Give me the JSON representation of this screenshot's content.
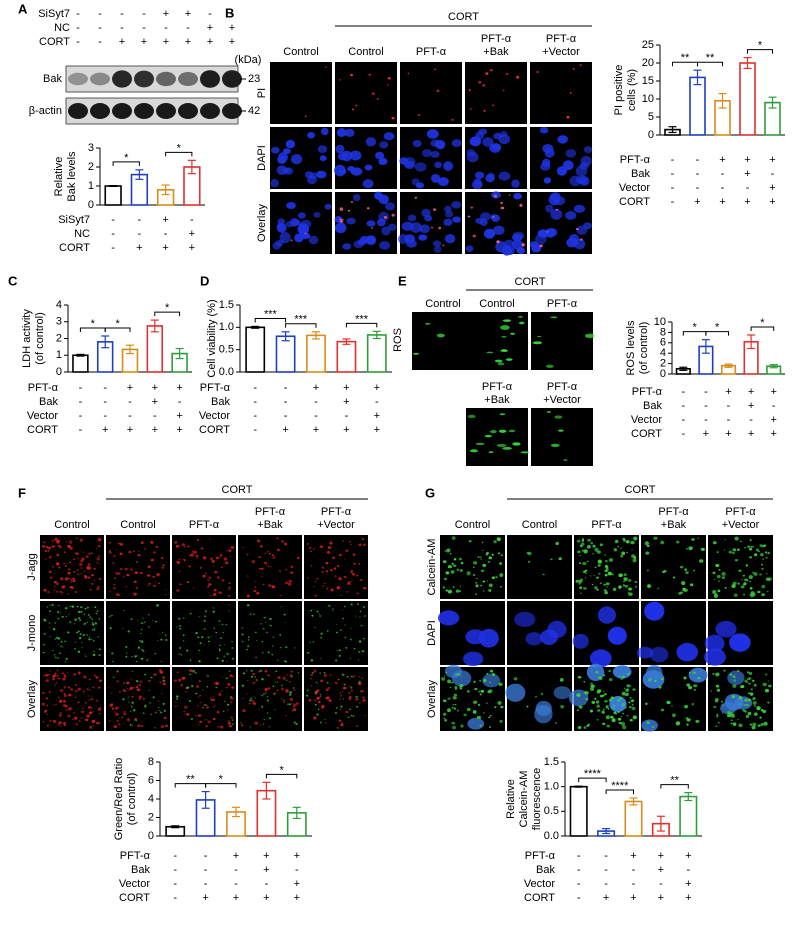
{
  "panel_labels": [
    "A",
    "B",
    "C",
    "D",
    "E",
    "F",
    "G"
  ],
  "blot": {
    "rows": [
      {
        "name": "SiSyt7",
        "signs": [
          "-",
          "-",
          "-",
          "-",
          "+",
          "+",
          "-",
          "-"
        ]
      },
      {
        "name": "NC",
        "signs": [
          "-",
          "-",
          "-",
          "-",
          "-",
          "-",
          "+",
          "+"
        ]
      },
      {
        "name": "CORT",
        "signs": [
          "-",
          "-",
          "+",
          "+",
          "+",
          "+",
          "+",
          "+"
        ]
      }
    ],
    "unit": "(kDa)",
    "bands": [
      {
        "name": "Bak",
        "marker": "23"
      },
      {
        "name": "β-actin",
        "marker": "42"
      }
    ]
  },
  "images": {
    "B": {
      "title": "CORT",
      "columns": [
        [
          "Control"
        ],
        [
          "Control"
        ],
        [
          "PFT-α"
        ],
        [
          "PFT-α",
          "+Bak"
        ],
        [
          "PFT-α",
          "+Vector"
        ]
      ],
      "rows": [
        "PI",
        "DAPI",
        "Overlay"
      ]
    },
    "E": {
      "title": "CORT",
      "columns": [
        [
          "Control"
        ],
        [
          "Control"
        ],
        [
          "PFT-α"
        ],
        [
          "PFT-α",
          "+Bak"
        ],
        [
          "PFT-α",
          "+Vector"
        ]
      ],
      "rows": [
        "ROS"
      ]
    },
    "F": {
      "title": "CORT",
      "columns": [
        [
          "Control"
        ],
        [
          "Control"
        ],
        [
          "PFT-α"
        ],
        [
          "PFT-α",
          "+Bak"
        ],
        [
          "PFT-α",
          "+Vector"
        ]
      ],
      "rows": [
        "J-agg",
        "J-mono",
        "Overlay"
      ]
    },
    "G": {
      "title": "CORT",
      "columns": [
        [
          "Control"
        ],
        [
          "Control"
        ],
        [
          "PFT-α"
        ],
        [
          "PFT-α",
          "+Bak"
        ],
        [
          "PFT-α",
          "+Vector"
        ]
      ],
      "rows": [
        "Calcein-AM",
        "DAPI",
        "Overlay"
      ]
    }
  },
  "chart_data": [
    {
      "type": "bar",
      "ylabel": [
        "Relative",
        "Bak levels"
      ],
      "values": [
        1,
        1.6,
        0.8,
        2.0
      ],
      "errors": [
        0.02,
        0.25,
        0.25,
        0.35
      ],
      "colors": [
        "#000000",
        "#1f3fbf",
        "#d98c1a",
        "#e0302f"
      ],
      "ylim": [
        0,
        3
      ],
      "yticks": [
        0,
        1,
        2,
        3
      ],
      "significance": [
        {
          "from": 0,
          "to": 1,
          "label": "*"
        },
        {
          "from": 2,
          "to": 3,
          "label": "*"
        }
      ],
      "conditions": [
        {
          "name": "SiSyt7",
          "signs": [
            "-",
            "-",
            "+",
            "-"
          ]
        },
        {
          "name": "NC",
          "signs": [
            "-",
            "-",
            "-",
            "+"
          ]
        },
        {
          "name": "CORT",
          "signs": [
            "-",
            "+",
            "+",
            "+"
          ]
        }
      ]
    },
    {
      "type": "bar",
      "ylabel": [
        "PI positive",
        "cells (%)"
      ],
      "values": [
        1.5,
        16,
        9.5,
        20,
        9
      ],
      "errors": [
        0.8,
        2,
        2,
        1.5,
        1.5
      ],
      "colors": [
        "#000000",
        "#1f3fbf",
        "#d98c1a",
        "#e0302f",
        "#2e9e3a"
      ],
      "ylim": [
        0,
        25
      ],
      "yticks": [
        0,
        5,
        10,
        15,
        20,
        25
      ],
      "significance": [
        {
          "from": 0,
          "to": 1,
          "label": "**"
        },
        {
          "from": 1,
          "to": 2,
          "label": "**"
        },
        {
          "from": 3,
          "to": 4,
          "label": "*"
        }
      ],
      "conditions": [
        {
          "name": "PFT-α",
          "signs": [
            "-",
            "-",
            "+",
            "+",
            "+"
          ]
        },
        {
          "name": "Bak",
          "signs": [
            "-",
            "-",
            "-",
            "+",
            "-"
          ]
        },
        {
          "name": "Vector",
          "signs": [
            "-",
            "-",
            "-",
            "-",
            "+"
          ]
        },
        {
          "name": "CORT",
          "signs": [
            "-",
            "+",
            "+",
            "+",
            "+"
          ]
        }
      ]
    },
    {
      "type": "bar",
      "ylabel": [
        "LDH activity",
        "(of control)"
      ],
      "values": [
        1,
        1.8,
        1.35,
        2.75,
        1.1
      ],
      "errors": [
        0.05,
        0.35,
        0.25,
        0.35,
        0.3
      ],
      "colors": [
        "#000000",
        "#1f3fbf",
        "#d98c1a",
        "#e0302f",
        "#2e9e3a"
      ],
      "ylim": [
        0,
        4
      ],
      "yticks": [
        0,
        1,
        2,
        3,
        4
      ],
      "significance": [
        {
          "from": 0,
          "to": 1,
          "label": "*"
        },
        {
          "from": 1,
          "to": 2,
          "label": "*"
        },
        {
          "from": 3,
          "to": 4,
          "label": "*"
        }
      ],
      "conditions": [
        {
          "name": "PFT-α",
          "signs": [
            "-",
            "-",
            "+",
            "+",
            "+"
          ]
        },
        {
          "name": "Bak",
          "signs": [
            "-",
            "-",
            "-",
            "+",
            "-"
          ]
        },
        {
          "name": "Vector",
          "signs": [
            "-",
            "-",
            "-",
            "-",
            "+"
          ]
        },
        {
          "name": "CORT",
          "signs": [
            "-",
            "+",
            "+",
            "+",
            "+"
          ]
        }
      ]
    },
    {
      "type": "bar",
      "ylabel": [
        "Cell viability (%)"
      ],
      "values": [
        1.0,
        0.8,
        0.82,
        0.68,
        0.83
      ],
      "errors": [
        0.02,
        0.1,
        0.08,
        0.06,
        0.08
      ],
      "colors": [
        "#000000",
        "#1f3fbf",
        "#d98c1a",
        "#e0302f",
        "#2e9e3a"
      ],
      "ylim": [
        0,
        1.5
      ],
      "yticks": [
        {
          "value": 0,
          "label": "0.0"
        },
        0.5,
        {
          "value": 1,
          "label": "1.0"
        },
        1.5
      ],
      "significance": [
        {
          "from": 0,
          "to": 1,
          "label": "***"
        },
        {
          "from": 1,
          "to": 2,
          "label": "***"
        },
        {
          "from": 3,
          "to": 4,
          "label": "***"
        }
      ],
      "conditions": [
        {
          "name": "PFT-α",
          "signs": [
            "-",
            "-",
            "+",
            "+",
            "+"
          ]
        },
        {
          "name": "Bak",
          "signs": [
            "-",
            "-",
            "-",
            "+",
            "-"
          ]
        },
        {
          "name": "Vector",
          "signs": [
            "-",
            "-",
            "-",
            "-",
            "+"
          ]
        },
        {
          "name": "CORT",
          "signs": [
            "-",
            "+",
            "+",
            "+",
            "+"
          ]
        }
      ]
    },
    {
      "type": "bar",
      "ylabel": [
        "ROS levels",
        "(of control)"
      ],
      "values": [
        1,
        5.3,
        1.6,
        6.2,
        1.5
      ],
      "errors": [
        0.3,
        1.3,
        0.3,
        1.3,
        0.3
      ],
      "colors": [
        "#000000",
        "#1f3fbf",
        "#d98c1a",
        "#e0302f",
        "#2e9e3a"
      ],
      "ylim": [
        0,
        10
      ],
      "yticks": [
        0,
        2,
        4,
        6,
        8,
        10
      ],
      "significance": [
        {
          "from": 0,
          "to": 1,
          "label": "*"
        },
        {
          "from": 1,
          "to": 2,
          "label": "*"
        },
        {
          "from": 3,
          "to": 4,
          "label": "*"
        }
      ],
      "conditions": [
        {
          "name": "PFT-α",
          "signs": [
            "-",
            "-",
            "+",
            "+",
            "+"
          ]
        },
        {
          "name": "Bak",
          "signs": [
            "-",
            "-",
            "-",
            "+",
            "-"
          ]
        },
        {
          "name": "Vector",
          "signs": [
            "-",
            "-",
            "-",
            "-",
            "+"
          ]
        },
        {
          "name": "CORT",
          "signs": [
            "-",
            "+",
            "+",
            "+",
            "+"
          ]
        }
      ]
    },
    {
      "type": "bar",
      "ylabel": [
        "Green/Red Ratio",
        "(of control)"
      ],
      "values": [
        1,
        3.9,
        2.6,
        4.9,
        2.5
      ],
      "errors": [
        0.1,
        0.9,
        0.5,
        0.9,
        0.6
      ],
      "colors": [
        "#000000",
        "#1f3fbf",
        "#d98c1a",
        "#e0302f",
        "#2e9e3a"
      ],
      "ylim": [
        0,
        8
      ],
      "yticks": [
        0,
        2,
        4,
        6,
        8
      ],
      "significance": [
        {
          "from": 0,
          "to": 1,
          "label": "**"
        },
        {
          "from": 1,
          "to": 2,
          "label": "*"
        },
        {
          "from": 3,
          "to": 4,
          "label": "*"
        }
      ],
      "conditions": [
        {
          "name": "PFT-α",
          "signs": [
            "-",
            "-",
            "+",
            "+",
            "+"
          ]
        },
        {
          "name": "Bak",
          "signs": [
            "-",
            "-",
            "-",
            "+",
            "-"
          ]
        },
        {
          "name": "Vector",
          "signs": [
            "-",
            "-",
            "-",
            "-",
            "+"
          ]
        },
        {
          "name": "CORT",
          "signs": [
            "-",
            "+",
            "+",
            "+",
            "+"
          ]
        }
      ]
    },
    {
      "type": "bar",
      "ylabel": [
        "Relative",
        "Calcein-AM",
        "fluorescence"
      ],
      "values": [
        1.0,
        0.1,
        0.7,
        0.25,
        0.8
      ],
      "errors": [
        0.01,
        0.05,
        0.07,
        0.15,
        0.08
      ],
      "colors": [
        "#000000",
        "#1f3fbf",
        "#d98c1a",
        "#e0302f",
        "#2e9e3a"
      ],
      "ylim": [
        0,
        1.5
      ],
      "yticks": [
        {
          "value": 0,
          "label": "0.0"
        },
        0.5,
        {
          "value": 1,
          "label": "1.0"
        },
        1.5
      ],
      "significance": [
        {
          "from": 0,
          "to": 1,
          "label": "****"
        },
        {
          "from": 1,
          "to": 2,
          "label": "****"
        },
        {
          "from": 3,
          "to": 4,
          "label": "**"
        }
      ],
      "conditions": [
        {
          "name": "PFT-α",
          "signs": [
            "-",
            "-",
            "+",
            "+",
            "+"
          ]
        },
        {
          "name": "Bak",
          "signs": [
            "-",
            "-",
            "-",
            "+",
            "-"
          ]
        },
        {
          "name": "Vector",
          "signs": [
            "-",
            "-",
            "-",
            "-",
            "+"
          ]
        },
        {
          "name": "CORT",
          "signs": [
            "-",
            "+",
            "+",
            "+",
            "+"
          ]
        }
      ]
    }
  ]
}
